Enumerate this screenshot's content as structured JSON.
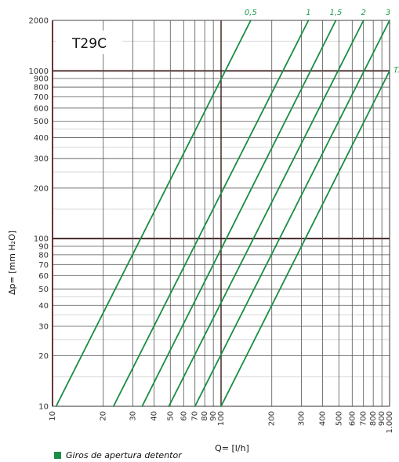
{
  "chart_data": {
    "type": "line",
    "title": "T29C",
    "xlabel": "Q= [l/h]",
    "ylabel": "Δp= [mm H₂O]",
    "x_scale": "log",
    "y_scale": "log",
    "xlim": [
      10,
      1000
    ],
    "ylim": [
      10,
      2000
    ],
    "grid": true,
    "x_ticks": [
      10,
      20,
      30,
      40,
      50,
      60,
      70,
      80,
      90,
      100,
      200,
      300,
      400,
      500,
      600,
      700,
      800,
      900,
      1000
    ],
    "x_tick_labels": [
      "10",
      "20",
      "30",
      "40",
      "50",
      "60",
      "70",
      "80",
      "90",
      "100",
      "200",
      "300",
      "400",
      "500",
      "600",
      "700",
      "800",
      "900",
      "1.000"
    ],
    "y_ticks": [
      10,
      20,
      30,
      40,
      50,
      60,
      70,
      80,
      90,
      100,
      200,
      300,
      400,
      500,
      600,
      700,
      800,
      900,
      1000,
      2000
    ],
    "y_tick_labels": [
      "10",
      "20",
      "30",
      "40",
      "50",
      "60",
      "70",
      "80",
      "90",
      "100",
      "200",
      "300",
      "400",
      "500",
      "600",
      "700",
      "800",
      "900",
      "1000",
      "2000"
    ],
    "series": [
      {
        "name": "0,5",
        "points": [
          [
            10.5,
            10
          ],
          [
            150,
            2000
          ]
        ]
      },
      {
        "name": "1",
        "points": [
          [
            23,
            10
          ],
          [
            330,
            2000
          ]
        ]
      },
      {
        "name": "1,5",
        "points": [
          [
            34,
            10
          ],
          [
            480,
            2000
          ]
        ]
      },
      {
        "name": "2",
        "points": [
          [
            49,
            10
          ],
          [
            700,
            2000
          ]
        ]
      },
      {
        "name": "3",
        "points": [
          [
            70,
            10
          ],
          [
            1000,
            2000
          ]
        ]
      },
      {
        "name": "T.",
        "points": [
          [
            100,
            10
          ],
          [
            1000,
            1000
          ]
        ]
      }
    ],
    "line_color": "#1a8c44",
    "highlight_lines": [
      100,
      1000
    ]
  },
  "legend": {
    "label": "Giros de apertura detentor",
    "color": "#1a8c44"
  }
}
